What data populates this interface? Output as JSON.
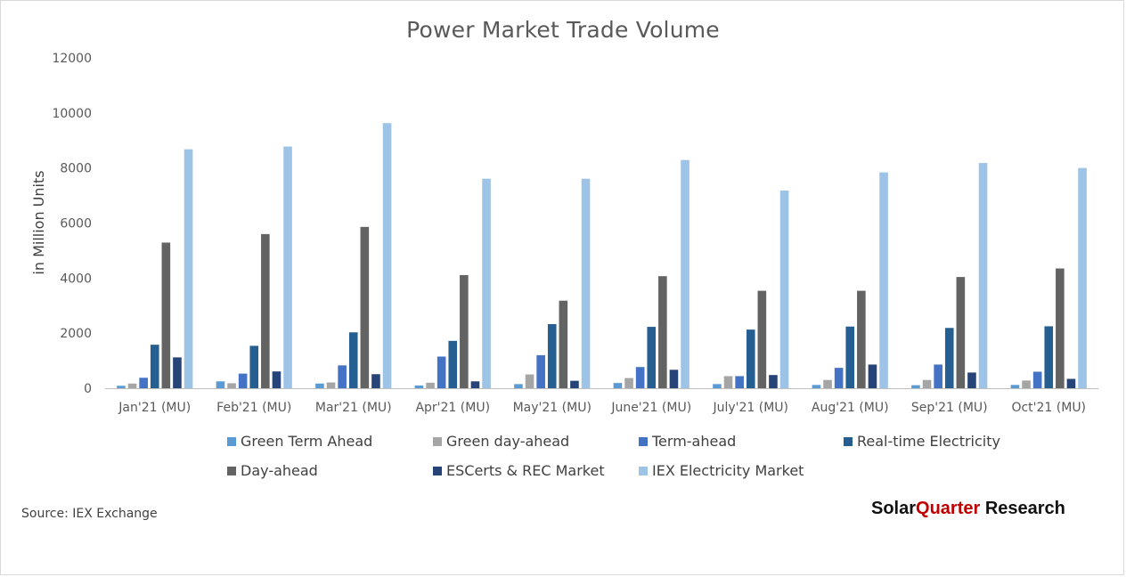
{
  "chart_data": {
    "type": "bar",
    "title": "Power Market Trade Volume",
    "ylabel": "in Million Units",
    "xlabel": "",
    "ylim": [
      0,
      12000
    ],
    "yticks": [
      0,
      2000,
      4000,
      6000,
      8000,
      10000,
      12000
    ],
    "grid": false,
    "legend_position": "bottom",
    "categories": [
      "Jan'21 (MU)",
      "Feb'21 (MU)",
      "Mar'21 (MU)",
      "Apr'21 (MU)",
      "May'21 (MU)",
      "June'21 (MU)",
      "July'21 (MU)",
      "Aug'21 (MU)",
      "Sep'21 (MU)",
      "Oct'21 (MU)"
    ],
    "series": [
      {
        "name": "Green Term Ahead",
        "color": "#5b9bd5",
        "values": [
          90,
          250,
          170,
          100,
          150,
          190,
          150,
          120,
          110,
          120
        ]
      },
      {
        "name": "Green day-ahead",
        "color": "#a5a5a5",
        "values": [
          170,
          180,
          210,
          200,
          500,
          370,
          440,
          300,
          300,
          280
        ]
      },
      {
        "name": "Term-ahead",
        "color": "#4472c4",
        "values": [
          380,
          530,
          830,
          1150,
          1200,
          770,
          440,
          740,
          860,
          600
        ]
      },
      {
        "name": "Real-time Electricity",
        "color": "#255e91",
        "values": [
          1580,
          1540,
          2030,
          1720,
          2330,
          2230,
          2130,
          2240,
          2190,
          2250
        ]
      },
      {
        "name": "Day-ahead",
        "color": "#636363",
        "values": [
          5290,
          5600,
          5860,
          4110,
          3180,
          4070,
          3540,
          3540,
          4040,
          4350
        ]
      },
      {
        "name": "ESCerts & REC Market",
        "color": "#264478",
        "values": [
          1120,
          610,
          510,
          250,
          270,
          670,
          480,
          860,
          570,
          340
        ]
      },
      {
        "name": "IEX Electricity Market",
        "color": "#9dc3e6",
        "values": [
          8680,
          8780,
          9630,
          7610,
          7610,
          8290,
          7180,
          7840,
          8180,
          8000
        ]
      }
    ]
  },
  "source": "Source: IEX Exchange",
  "brand": {
    "part1": "Solar",
    "part2": "Quarter",
    "part3": " Research"
  }
}
